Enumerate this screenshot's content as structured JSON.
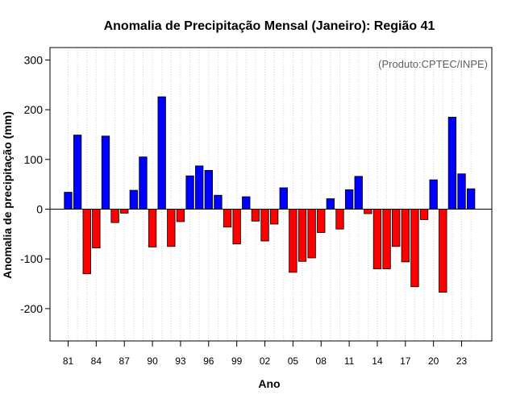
{
  "chart_data": {
    "type": "bar",
    "title": "Anomalia de Precipitação Mensal (Janeiro): Região 41",
    "xlabel": "Ano",
    "ylabel": "Anomalia de precipitação (mm)",
    "credit": "(Produto:CPTEC/INPE)",
    "ylim": [
      -265,
      325
    ],
    "yticks": [
      -200,
      -100,
      0,
      100,
      200,
      300
    ],
    "grid": "vertical dotted",
    "years": [
      1981,
      1982,
      1983,
      1984,
      1985,
      1986,
      1987,
      1988,
      1989,
      1990,
      1991,
      1992,
      1993,
      1994,
      1995,
      1996,
      1997,
      1998,
      1999,
      2000,
      2001,
      2002,
      2003,
      2004,
      2005,
      2006,
      2007,
      2008,
      2009,
      2010,
      2011,
      2012,
      2013,
      2014,
      2015,
      2016,
      2017,
      2018,
      2019,
      2020,
      2021,
      2022,
      2023,
      2024
    ],
    "values": [
      34,
      149,
      -130,
      -78,
      147,
      -27,
      -8,
      38,
      105,
      -76,
      226,
      -75,
      -25,
      67,
      87,
      78,
      28,
      -36,
      -70,
      25,
      -24,
      -64,
      -30,
      43,
      -127,
      -105,
      -98,
      -47,
      21,
      -40,
      39,
      66,
      -9,
      -120,
      -120,
      -75,
      -106,
      -156,
      -21,
      59,
      -167,
      185,
      71,
      41
    ],
    "xtick_labels": [
      "81",
      "84",
      "87",
      "90",
      "93",
      "96",
      "99",
      "02",
      "05",
      "08",
      "11",
      "14",
      "17",
      "20",
      "23"
    ],
    "colors": {
      "positive": "#0000ff",
      "negative": "#ff0000"
    }
  }
}
